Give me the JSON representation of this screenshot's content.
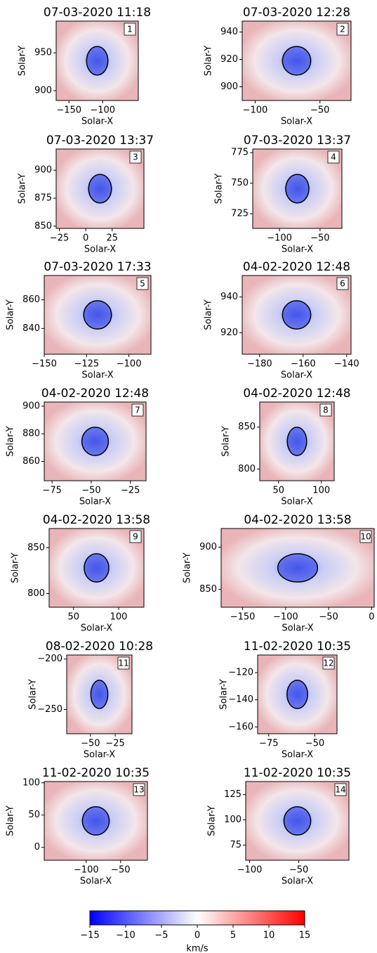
{
  "chart_data": [
    {
      "type": "heatmap",
      "title": "07-03-2020 11:18",
      "label": "1",
      "xlabel": "Solar-X",
      "ylabel": "Solar-Y",
      "xlim": [
        -169,
        -47
      ],
      "xticks": [
        {
          "value": -150,
          "label": "−150"
        },
        {
          "value": -100,
          "label": "−100"
        }
      ],
      "ylim": [
        887,
        992
      ],
      "yticks": [
        900,
        950
      ]
    },
    {
      "type": "heatmap",
      "title": "07-03-2020 12:28",
      "label": "2",
      "xlabel": "Solar-X",
      "ylabel": "Solar-Y",
      "xlim": [
        -110,
        -26
      ],
      "xticks": [
        {
          "value": -100,
          "label": "−100"
        },
        {
          "value": -50,
          "label": "−50"
        }
      ],
      "ylim": [
        890,
        948
      ],
      "yticks": [
        900,
        920,
        940
      ]
    },
    {
      "type": "heatmap",
      "title": "07-03-2020 13:37",
      "label": "3",
      "xlabel": "Solar-X",
      "ylabel": "Solar-Y",
      "xlim": [
        -28,
        55
      ],
      "xticks": [
        {
          "value": -25,
          "label": "−25"
        },
        0,
        25
      ],
      "ylim": [
        848,
        919
      ],
      "yticks": [
        850,
        875,
        900
      ]
    },
    {
      "type": "heatmap",
      "title": "07-03-2020 13:37",
      "label": "4",
      "xlabel": "Solar-X",
      "ylabel": "Solar-Y",
      "xlim": [
        -133,
        -23
      ],
      "xticks": [
        {
          "value": -100,
          "label": "−100"
        },
        {
          "value": -50,
          "label": "−50"
        }
      ],
      "ylim": [
        713,
        778
      ],
      "yticks": [
        725,
        750,
        775
      ]
    },
    {
      "type": "heatmap",
      "title": "07-03-2020 17:33",
      "label": "5",
      "xlabel": "Solar-X",
      "ylabel": "Solar-Y",
      "xlim": [
        -150,
        -87
      ],
      "xticks": [
        {
          "value": -150,
          "label": "−150"
        },
        {
          "value": -125,
          "label": "−125"
        },
        {
          "value": -100,
          "label": "−100"
        }
      ],
      "ylim": [
        822,
        877
      ],
      "yticks": [
        840,
        860
      ]
    },
    {
      "type": "heatmap",
      "title": "04-02-2020 12:48",
      "label": "6",
      "xlabel": "Solar-X",
      "ylabel": "Solar-Y",
      "xlim": [
        -188,
        -138
      ],
      "xticks": [
        {
          "value": -180,
          "label": "−180"
        },
        {
          "value": -160,
          "label": "−160"
        },
        {
          "value": -140,
          "label": "−140"
        }
      ],
      "ylim": [
        908,
        952
      ],
      "yticks": [
        920,
        940
      ]
    },
    {
      "type": "heatmap",
      "title": "04-02-2020 12:48",
      "label": "7",
      "xlabel": "Solar-X",
      "ylabel": "Solar-Y",
      "xlim": [
        -80,
        -15
      ],
      "xticks": [
        {
          "value": -75,
          "label": "−75"
        },
        {
          "value": -50,
          "label": "−50"
        },
        {
          "value": -25,
          "label": "−25"
        }
      ],
      "ylim": [
        846,
        903
      ],
      "yticks": [
        860,
        880,
        900
      ]
    },
    {
      "type": "heatmap",
      "title": "04-02-2020 12:48",
      "label": "8",
      "xlabel": "Solar-X",
      "ylabel": "Solar-Y",
      "xlim": [
        28,
        115
      ],
      "xticks": [
        50,
        100
      ],
      "ylim": [
        786,
        880
      ],
      "yticks": [
        800,
        850
      ]
    },
    {
      "type": "heatmap",
      "title": "04-02-2020 13:58",
      "label": "9",
      "xlabel": "Solar-X",
      "ylabel": "Solar-Y",
      "xlim": [
        23,
        128
      ],
      "xticks": [
        50,
        100
      ],
      "ylim": [
        785,
        871
      ],
      "yticks": [
        800,
        850
      ]
    },
    {
      "type": "heatmap",
      "title": "04-02-2020 13:58",
      "label": "10",
      "xlabel": "Solar-X",
      "ylabel": "Solar-Y",
      "xlim": [
        -175,
        3
      ],
      "xticks": [
        {
          "value": -150,
          "label": "−150"
        },
        {
          "value": -100,
          "label": "−100"
        },
        {
          "value": -50,
          "label": "−50"
        },
        0
      ],
      "ylim": [
        829,
        922
      ],
      "yticks": [
        850,
        900
      ]
    },
    {
      "type": "heatmap",
      "title": "08-02-2020 10:28",
      "label": "11",
      "xlabel": "Solar-X",
      "ylabel": "Solar-Y",
      "xlim": [
        -74,
        -8
      ],
      "xticks": [
        {
          "value": -50,
          "label": "−50"
        },
        {
          "value": -25,
          "label": "−25"
        }
      ],
      "ylim": [
        -274,
        -196
      ],
      "yticks": [
        {
          "value": -250,
          "label": "−250"
        },
        {
          "value": -200,
          "label": "−200"
        }
      ]
    },
    {
      "type": "heatmap",
      "title": "11-02-2020 10:35",
      "label": "12",
      "xlabel": "Solar-X",
      "ylabel": "Solar-Y",
      "xlim": [
        -81,
        -38
      ],
      "xticks": [
        {
          "value": -75,
          "label": "−75"
        },
        {
          "value": -50,
          "label": "−50"
        }
      ],
      "ylim": [
        -165,
        -107
      ],
      "yticks": [
        {
          "value": -160,
          "label": "−160"
        },
        {
          "value": -140,
          "label": "−140"
        },
        {
          "value": -120,
          "label": "−120"
        }
      ]
    },
    {
      "type": "heatmap",
      "title": "11-02-2020 10:35",
      "label": "13",
      "xlabel": "Solar-X",
      "ylabel": "Solar-Y",
      "xlim": [
        -161,
        -11
      ],
      "xticks": [
        {
          "value": -100,
          "label": "−100"
        },
        {
          "value": -50,
          "label": "−50"
        }
      ],
      "ylim": [
        -20,
        102
      ],
      "yticks": [
        0,
        50,
        100
      ]
    },
    {
      "type": "heatmap",
      "title": "11-02-2020 10:35",
      "label": "14",
      "xlabel": "Solar-X",
      "ylabel": "Solar-Y",
      "xlim": [
        -104,
        1
      ],
      "xticks": [
        {
          "value": -100,
          "label": "−100"
        },
        {
          "value": -50,
          "label": "−50"
        }
      ],
      "ylim": [
        60,
        138
      ],
      "yticks": [
        75,
        100,
        125
      ]
    },
    {
      "type": "colorbar",
      "xlabel": "km/s",
      "xlim": [
        -15,
        15
      ],
      "xticks": [
        {
          "value": -15,
          "label": "−15"
        },
        {
          "value": -10,
          "label": "−10"
        },
        {
          "value": -5,
          "label": "−5"
        },
        0,
        5,
        10,
        15
      ],
      "colors": [
        "#0000ff",
        "#ffffff",
        "#ff0000"
      ]
    }
  ]
}
